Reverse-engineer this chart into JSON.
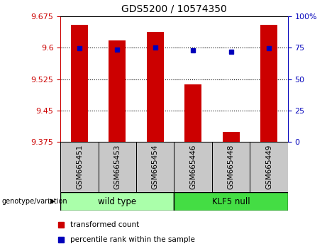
{
  "title": "GDS5200 / 10574350",
  "samples": [
    "GSM665451",
    "GSM665453",
    "GSM665454",
    "GSM665446",
    "GSM665448",
    "GSM665449"
  ],
  "groups": [
    {
      "label": "wild type",
      "indices": [
        0,
        1,
        2
      ],
      "facecolor": "#AAFFAA"
    },
    {
      "label": "KLF5 null",
      "indices": [
        3,
        4,
        5
      ],
      "facecolor": "#44DD44"
    }
  ],
  "bar_values": [
    9.655,
    9.618,
    9.638,
    9.512,
    9.398,
    9.655
  ],
  "percentile_values": [
    9.598,
    9.596,
    9.601,
    9.594,
    9.591,
    9.598
  ],
  "ylim": [
    9.375,
    9.675
  ],
  "yticks": [
    9.375,
    9.45,
    9.525,
    9.6,
    9.675
  ],
  "ytick_labels": [
    "9.375",
    "9.45",
    "9.525",
    "9.6",
    "9.675"
  ],
  "y2lim": [
    0,
    100
  ],
  "y2ticks": [
    0,
    25,
    50,
    75,
    100
  ],
  "y2tick_labels": [
    "0",
    "25",
    "50",
    "75",
    "100%"
  ],
  "bar_color": "#CC0000",
  "percentile_color": "#0000BB",
  "bar_base": 9.375,
  "grid_lines": [
    9.6,
    9.525,
    9.45
  ],
  "legend_items": [
    {
      "label": "transformed count",
      "color": "#CC0000"
    },
    {
      "label": "percentile rank within the sample",
      "color": "#0000BB"
    }
  ]
}
